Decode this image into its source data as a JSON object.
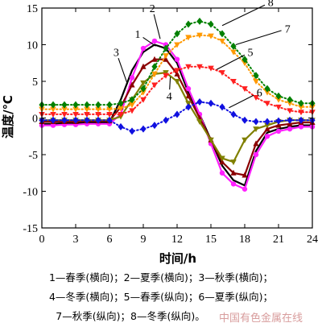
{
  "chart_data": {
    "type": "line",
    "xlabel": "时间/h",
    "ylabel": "温度/℃",
    "xlim": [
      0,
      24
    ],
    "ylim": [
      -15,
      15
    ],
    "xticks": [
      0,
      3,
      6,
      9,
      12,
      15,
      18,
      21,
      24
    ],
    "yticks": [
      -15,
      -10,
      -5,
      0,
      5,
      10,
      15
    ],
    "grid": false,
    "series": [
      {
        "name": "1",
        "color": "#000000",
        "marker": "none",
        "dash": "solid",
        "x": [
          0,
          1,
          2,
          3,
          4,
          5,
          6,
          7,
          8,
          9,
          10,
          11,
          12,
          13,
          14,
          15,
          16,
          17,
          18,
          19,
          20,
          21,
          22,
          23,
          24
        ],
        "y": [
          -0.8,
          -0.8,
          -0.7,
          -0.7,
          -0.6,
          -0.6,
          -0.6,
          2.5,
          6.5,
          9.0,
          10.0,
          9.5,
          7.5,
          3.5,
          0.5,
          -3.0,
          -6.5,
          -8.5,
          -9.2,
          -4.5,
          -2.0,
          -1.5,
          -1.2,
          -1.0,
          -1.0
        ]
      },
      {
        "name": "2",
        "color": "#ff20ff",
        "marker": "circle",
        "dash": "solid",
        "x": [
          0,
          1,
          2,
          3,
          4,
          5,
          6,
          7,
          8,
          9,
          10,
          11,
          12,
          13,
          14,
          15,
          16,
          17,
          18,
          19,
          20,
          21,
          22,
          23,
          24
        ],
        "y": [
          -1.0,
          -1.0,
          -0.9,
          -0.9,
          -0.8,
          -0.8,
          -0.8,
          0.5,
          5.5,
          9.5,
          10.5,
          10.0,
          8.0,
          4.0,
          0.5,
          -3.5,
          -7.5,
          -9.0,
          -9.7,
          -5.0,
          -2.5,
          -1.8,
          -1.5,
          -1.2,
          -1.2
        ]
      },
      {
        "name": "3",
        "color": "#8b0000",
        "marker": "triangle-up",
        "dash": "solid",
        "x": [
          0,
          1,
          2,
          3,
          4,
          5,
          6,
          7,
          8,
          9,
          10,
          11,
          12,
          13,
          14,
          15,
          16,
          17,
          18,
          19,
          20,
          21,
          22,
          23,
          24
        ],
        "y": [
          -0.5,
          -0.5,
          -0.5,
          -0.5,
          -0.4,
          -0.4,
          -0.4,
          1.5,
          4.5,
          7.0,
          8.0,
          8.0,
          6.0,
          3.0,
          0.0,
          -3.0,
          -6.0,
          -7.5,
          -7.8,
          -3.5,
          -1.5,
          -1.0,
          -0.8,
          -0.6,
          -0.6
        ]
      },
      {
        "name": "4",
        "color": "#808000",
        "marker": "triangle-down",
        "dash": "solid",
        "x": [
          0,
          1,
          2,
          3,
          4,
          5,
          6,
          7,
          8,
          9,
          10,
          11,
          12,
          13,
          14,
          15,
          16,
          17,
          18,
          19,
          20,
          21,
          22,
          23,
          24
        ],
        "y": [
          -0.3,
          -0.3,
          -0.3,
          -0.3,
          -0.3,
          -0.3,
          -0.3,
          0.2,
          2.5,
          4.8,
          6.0,
          6.2,
          5.0,
          2.0,
          -0.5,
          -3.0,
          -5.5,
          -6.0,
          -3.0,
          -1.5,
          -1.0,
          -0.5,
          -0.3,
          -0.3,
          -0.3
        ]
      },
      {
        "name": "5",
        "color": "#ff2020",
        "marker": "triangle-down",
        "dash": "dotted",
        "x": [
          0,
          1,
          2,
          3,
          4,
          5,
          6,
          7,
          8,
          9,
          10,
          11,
          12,
          13,
          14,
          15,
          16,
          17,
          18,
          19,
          20,
          21,
          22,
          23,
          24
        ],
        "y": [
          0.5,
          0.5,
          0.5,
          0.5,
          0.5,
          0.5,
          0.5,
          0.5,
          1.0,
          2.5,
          4.5,
          5.8,
          6.5,
          7.0,
          7.0,
          6.8,
          6.2,
          5.0,
          4.0,
          2.8,
          2.0,
          1.5,
          1.0,
          0.8,
          0.8
        ]
      },
      {
        "name": "6",
        "color": "#1010e0",
        "marker": "diamond",
        "dash": "dotted",
        "x": [
          0,
          1,
          2,
          3,
          4,
          5,
          6,
          7,
          8,
          9,
          10,
          11,
          12,
          13,
          14,
          15,
          16,
          17,
          18,
          19,
          20,
          21,
          22,
          23,
          24
        ],
        "y": [
          -0.3,
          -0.3,
          -0.3,
          -0.3,
          -0.3,
          -0.3,
          -0.3,
          -1.2,
          -1.8,
          -1.5,
          -1.0,
          -0.3,
          0.5,
          1.5,
          2.2,
          2.0,
          1.5,
          0.5,
          -0.3,
          -0.5,
          -0.5,
          -0.4,
          -0.3,
          -0.3,
          -0.3
        ]
      },
      {
        "name": "7",
        "color": "#ff9900",
        "marker": "triangle-down",
        "dash": "dotted",
        "x": [
          0,
          1,
          2,
          3,
          4,
          5,
          6,
          7,
          8,
          9,
          10,
          11,
          12,
          13,
          14,
          15,
          16,
          17,
          18,
          19,
          20,
          21,
          22,
          23,
          24
        ],
        "y": [
          1.2,
          1.2,
          1.2,
          1.2,
          1.2,
          1.2,
          1.2,
          1.3,
          1.8,
          3.5,
          6.0,
          8.5,
          10.0,
          11.0,
          11.3,
          11.2,
          10.5,
          9.0,
          7.5,
          5.0,
          3.5,
          2.5,
          2.0,
          1.5,
          1.5
        ]
      },
      {
        "name": "8",
        "color": "#008000",
        "marker": "diamond",
        "dash": "dotted",
        "x": [
          0,
          1,
          2,
          3,
          4,
          5,
          6,
          7,
          8,
          9,
          10,
          11,
          12,
          13,
          14,
          15,
          16,
          17,
          18,
          19,
          20,
          21,
          22,
          23,
          24
        ],
        "y": [
          1.8,
          1.8,
          1.8,
          1.8,
          1.8,
          1.8,
          1.8,
          2.0,
          2.5,
          4.0,
          7.0,
          9.5,
          11.5,
          12.8,
          13.2,
          12.8,
          11.5,
          9.8,
          8.0,
          5.8,
          4.0,
          3.0,
          2.5,
          2.0,
          2.0
        ]
      }
    ],
    "annotations": [
      {
        "text": "1",
        "x": 8.5,
        "y": 11.5,
        "target_x": 10.1,
        "target_y": 9.8
      },
      {
        "text": "2",
        "x": 9.8,
        "y": 15.0,
        "target_x": 10.5,
        "target_y": 10.8
      },
      {
        "text": "3",
        "x": 6.6,
        "y": 9.0,
        "target_x": 7.6,
        "target_y": 4.6
      },
      {
        "text": "4",
        "x": 11.3,
        "y": 3.0,
        "target_x": 11.4,
        "target_y": 5.6
      },
      {
        "text": "5",
        "x": 18.5,
        "y": 9.0,
        "target_x": 15.5,
        "target_y": 6.6
      },
      {
        "text": "6",
        "x": 19.3,
        "y": 3.5,
        "target_x": 16.6,
        "target_y": 1.4
      },
      {
        "text": "7",
        "x": 21.8,
        "y": 12.2,
        "target_x": 17.2,
        "target_y": 10.0
      },
      {
        "text": "8",
        "x": 20.3,
        "y": 15.8,
        "target_x": 16.0,
        "target_y": 12.6
      }
    ]
  },
  "legend_lines": [
    "1—春季(横向)；2—夏季(横向)；3—秋季(横向)；",
    "4—冬季(横向)；5—春季(纵向)；6—夏季(纵向)；",
    "7—秋季(纵向)；8—冬季(纵向)。"
  ],
  "watermark": "中国有色金属在线"
}
